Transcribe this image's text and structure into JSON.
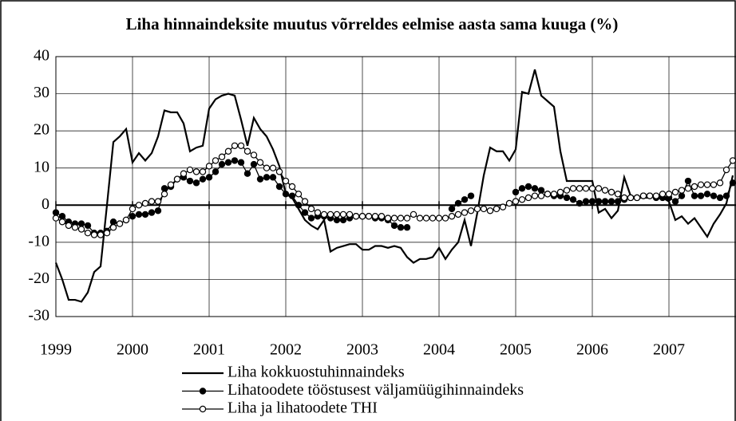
{
  "chart_data": {
    "type": "line",
    "title": "Liha hinnaindeksite muutus võrreldes eelmise aasta sama kuuga (%)",
    "categories": [
      "1999",
      null,
      null,
      null,
      null,
      null,
      null,
      null,
      null,
      null,
      null,
      null,
      "2000",
      null,
      null,
      null,
      null,
      null,
      null,
      null,
      null,
      null,
      null,
      null,
      "2001",
      null,
      null,
      null,
      null,
      null,
      null,
      null,
      null,
      null,
      null,
      null,
      "2002",
      null,
      null,
      null,
      null,
      null,
      null,
      null,
      null,
      null,
      null,
      null,
      "2003",
      null,
      null,
      null,
      null,
      null,
      null,
      null,
      null,
      null,
      null,
      null,
      "2004",
      null,
      null,
      null,
      null,
      null,
      null,
      null,
      null,
      null,
      null,
      null,
      "2005",
      null,
      null,
      null,
      null,
      null,
      null,
      null,
      null,
      null,
      null,
      null,
      "2006",
      null,
      null,
      null,
      null,
      null,
      null,
      null,
      null,
      null,
      null,
      null,
      "2007",
      null,
      null,
      null,
      null,
      null,
      null,
      null,
      null,
      null,
      null
    ],
    "series": [
      {
        "name": "Liha kokkuostuhinnaindeks",
        "color": "#000000",
        "marker": "none",
        "values": [
          -15.5,
          -20,
          -25.5,
          -25.5,
          -26,
          -23.5,
          -18,
          -16.5,
          0,
          17,
          18.5,
          20.5,
          11.5,
          14,
          12,
          14,
          18.5,
          25.5,
          25,
          25,
          22,
          14.5,
          15.5,
          16,
          26,
          28.5,
          29.5,
          30,
          29.5,
          23,
          16,
          23.5,
          20.5,
          18.5,
          15,
          10.5,
          3,
          2,
          -1,
          -4,
          -5.5,
          -6.5,
          -4,
          -12.5,
          -11.5,
          -11,
          -10.5,
          -10.5,
          -12,
          -12,
          -11,
          -11,
          -11.5,
          -11,
          -11.5,
          -14,
          -15.5,
          -14.5,
          -14.5,
          -14,
          -11.5,
          -14.5,
          -12,
          -10,
          -4,
          -11,
          -2,
          8,
          15.5,
          14.5,
          14.5,
          12,
          15,
          30.5,
          30,
          36.5,
          29.5,
          28,
          26.5,
          14.5,
          6.5,
          6.5,
          6.5,
          6.5,
          6.5,
          -2,
          -1,
          -3.5,
          -1.5,
          7.5,
          2.5,
          2,
          2,
          2,
          2.5,
          2,
          1,
          -4,
          -3,
          -5,
          -3.5,
          -6,
          -8.5,
          -5,
          -2.5,
          0.5,
          8
        ]
      },
      {
        "name": "Lihatoodete tööstusest väljamüügihinnaindeks",
        "color": "#000000",
        "marker": "filled",
        "values": [
          -2,
          -3,
          -4.5,
          -5,
          -5,
          -5.5,
          -7.5,
          -7.5,
          -7,
          -4.5,
          -5,
          -4,
          -3,
          -2.5,
          -2.5,
          -2,
          -1.5,
          4.5,
          5,
          7,
          7.5,
          6.5,
          6,
          7,
          7.5,
          9,
          11,
          11.5,
          12,
          11.5,
          8.5,
          11,
          7,
          7.5,
          7.5,
          5,
          3,
          2.5,
          0,
          -2,
          -3.5,
          -3,
          -3,
          -3.5,
          -4,
          -4,
          -3.5,
          -3,
          -3,
          -3,
          -3.5,
          -3.5,
          -4,
          -5.5,
          -6,
          -6,
          null,
          null,
          null,
          null,
          null,
          null,
          -1,
          0.5,
          1.5,
          2.5,
          null,
          null,
          null,
          null,
          null,
          null,
          3.5,
          4.5,
          5,
          4.5,
          4,
          3,
          2.5,
          2.5,
          2,
          1.5,
          0.5,
          1,
          1,
          1,
          1,
          1,
          1,
          1.5,
          2,
          2,
          2.5,
          2.5,
          2,
          2,
          2,
          1,
          2.5,
          6.5,
          2.5,
          2.5,
          3,
          2.5,
          2,
          2.5,
          6
        ]
      },
      {
        "name": "Liha ja lihatoodete THI",
        "color": "#000000",
        "marker": "hollow",
        "values": [
          -3.5,
          -4.5,
          -5.5,
          -6,
          -6.5,
          -7.5,
          -8,
          -8,
          -7.5,
          -6,
          -5,
          -4,
          -1,
          0,
          0.5,
          1,
          1,
          3,
          5.5,
          7,
          8.5,
          9.5,
          9,
          9,
          10.5,
          12,
          13,
          14.5,
          16,
          16,
          14.5,
          13.5,
          11.5,
          10,
          10,
          9,
          6.5,
          5,
          3,
          1,
          -1,
          -2,
          -2.5,
          -2.5,
          -2.5,
          -2.5,
          -2.5,
          -3,
          -3,
          -3,
          -3,
          -3,
          -3.5,
          -3.5,
          -3.5,
          -3.5,
          -2.5,
          -3.5,
          -3.5,
          -3.5,
          -3.5,
          -3.5,
          -3,
          -2.5,
          -2,
          -1.5,
          -1,
          -1,
          -1.5,
          -1,
          -0.5,
          0.5,
          1,
          1.5,
          2,
          2.5,
          2.5,
          3,
          3,
          3.5,
          4,
          4.5,
          4.5,
          4.5,
          4.5,
          4.5,
          4,
          3.5,
          3,
          2,
          2,
          2,
          2.5,
          2.5,
          2.5,
          3,
          3,
          3.5,
          4,
          4.5,
          5,
          5.5,
          5.5,
          5.5,
          6,
          9.5,
          12
        ]
      }
    ],
    "ylim": [
      -30,
      40
    ],
    "yticks": [
      -30,
      -20,
      -10,
      0,
      10,
      20,
      30,
      40
    ],
    "grid": true
  }
}
